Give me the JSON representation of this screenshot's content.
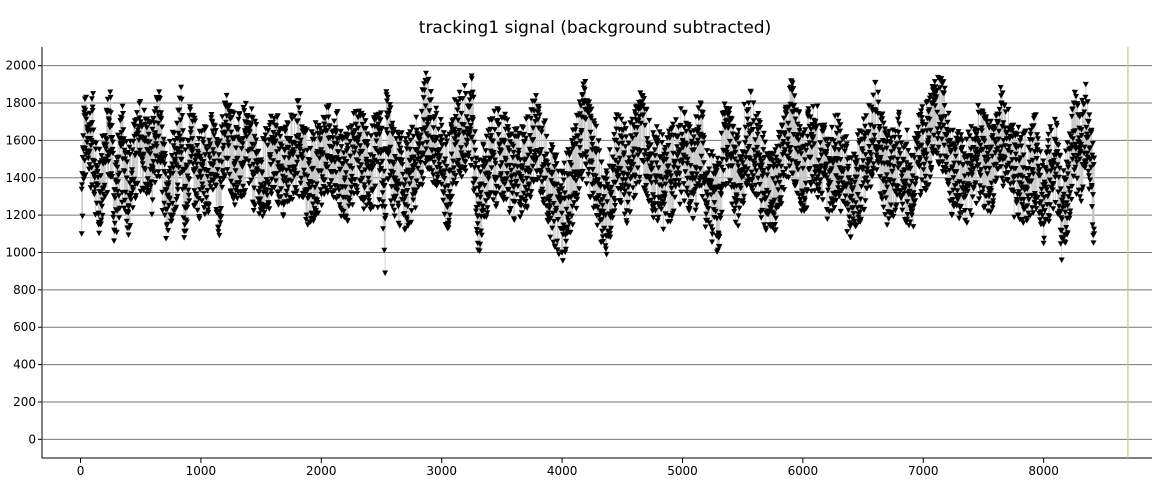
{
  "chart_data": {
    "type": "scatter",
    "title": "tracking1 signal (background subtracted)",
    "xlabel": "",
    "ylabel": "",
    "xlim": [
      -320,
      8900
    ],
    "ylim": [
      -100,
      2100
    ],
    "xticks": [
      0,
      1000,
      2000,
      3000,
      4000,
      5000,
      6000,
      7000,
      8000
    ],
    "yticks": [
      0,
      200,
      400,
      600,
      800,
      1000,
      1200,
      1400,
      1600,
      1800,
      2000
    ],
    "x_tick_labels": [
      "0",
      "1000",
      "2000",
      "3000",
      "4000",
      "5000",
      "6000",
      "7000",
      "8000"
    ],
    "y_tick_labels": [
      "0",
      "200",
      "400",
      "600",
      "800",
      "1000",
      "1200",
      "1400",
      "1600",
      "1800",
      "2000"
    ],
    "grid": "horizontal",
    "legend": "none",
    "marker": "down-triangle",
    "marker_color": "#000000",
    "line_color": "#c8c8c8",
    "cursor_line_x": 8700,
    "cursor_line_color": "#c8c878",
    "n_points": 4200,
    "x_range": [
      10,
      8420
    ],
    "y_center": 1450,
    "y_min_observed": 880,
    "y_max_observed": 1960,
    "series": [
      {
        "values_sample": [
          [
            10,
            1100
          ],
          [
            30,
            1750
          ],
          [
            60,
            1650
          ],
          [
            100,
            1760
          ],
          [
            150,
            1150
          ],
          [
            200,
            1500
          ],
          [
            250,
            1830
          ],
          [
            280,
            1120
          ],
          [
            350,
            1600
          ],
          [
            400,
            1250
          ],
          [
            500,
            1700
          ],
          [
            600,
            1450
          ],
          [
            650,
            1830
          ],
          [
            700,
            1200
          ],
          [
            800,
            1550
          ],
          [
            840,
            1820
          ],
          [
            860,
            1080
          ],
          [
            900,
            1600
          ],
          [
            1000,
            1400
          ],
          [
            1100,
            1550
          ],
          [
            1150,
            1200
          ],
          [
            1200,
            1800
          ],
          [
            1300,
            1500
          ],
          [
            1400,
            1650
          ],
          [
            1500,
            1250
          ],
          [
            1600,
            1600
          ],
          [
            1700,
            1400
          ],
          [
            1800,
            1700
          ],
          [
            1900,
            1300
          ],
          [
            2000,
            1550
          ],
          [
            2100,
            1650
          ],
          [
            2200,
            1350
          ],
          [
            2300,
            1600
          ],
          [
            2400,
            1450
          ],
          [
            2500,
            1550
          ],
          [
            2530,
            890
          ],
          [
            2540,
            1860
          ],
          [
            2600,
            1400
          ],
          [
            2700,
            1300
          ],
          [
            2800,
            1500
          ],
          [
            2870,
            1960
          ],
          [
            2950,
            1600
          ],
          [
            3050,
            1300
          ],
          [
            3100,
            1650
          ],
          [
            3200,
            1850
          ],
          [
            3250,
            1930
          ],
          [
            3300,
            1050
          ],
          [
            3400,
            1500
          ],
          [
            3500,
            1600
          ],
          [
            3600,
            1350
          ],
          [
            3700,
            1500
          ],
          [
            3800,
            1780
          ],
          [
            3900,
            1250
          ],
          [
            4000,
            1000
          ],
          [
            4100,
            1400
          ],
          [
            4180,
            1880
          ],
          [
            4250,
            1550
          ],
          [
            4370,
            990
          ],
          [
            4450,
            1600
          ],
          [
            4550,
            1350
          ],
          [
            4650,
            1800
          ],
          [
            4750,
            1450
          ],
          [
            4850,
            1300
          ],
          [
            5000,
            1600
          ],
          [
            5100,
            1400
          ],
          [
            5150,
            1800
          ],
          [
            5200,
            1250
          ],
          [
            5300,
            1080
          ],
          [
            5350,
            1750
          ],
          [
            5450,
            1300
          ],
          [
            5550,
            1800
          ],
          [
            5650,
            1450
          ],
          [
            5750,
            1150
          ],
          [
            5850,
            1550
          ],
          [
            5900,
            1880
          ],
          [
            6000,
            1450
          ],
          [
            6100,
            1700
          ],
          [
            6200,
            1400
          ],
          [
            6300,
            1550
          ],
          [
            6400,
            1150
          ],
          [
            6500,
            1450
          ],
          [
            6600,
            1910
          ],
          [
            6700,
            1350
          ],
          [
            6800,
            1550
          ],
          [
            6900,
            1250
          ],
          [
            7000,
            1650
          ],
          [
            7100,
            1850
          ],
          [
            7150,
            1930
          ],
          [
            7250,
            1400
          ],
          [
            7350,
            1300
          ],
          [
            7450,
            1600
          ],
          [
            7550,
            1450
          ],
          [
            7650,
            1800
          ],
          [
            7750,
            1400
          ],
          [
            7850,
            1350
          ],
          [
            7950,
            1550
          ],
          [
            8000,
            1150
          ],
          [
            8100,
            1600
          ],
          [
            8150,
            960
          ],
          [
            8200,
            1250
          ],
          [
            8250,
            1800
          ],
          [
            8300,
            1500
          ],
          [
            8350,
            1900
          ],
          [
            8400,
            1350
          ],
          [
            8420,
            1100
          ]
        ]
      }
    ]
  }
}
